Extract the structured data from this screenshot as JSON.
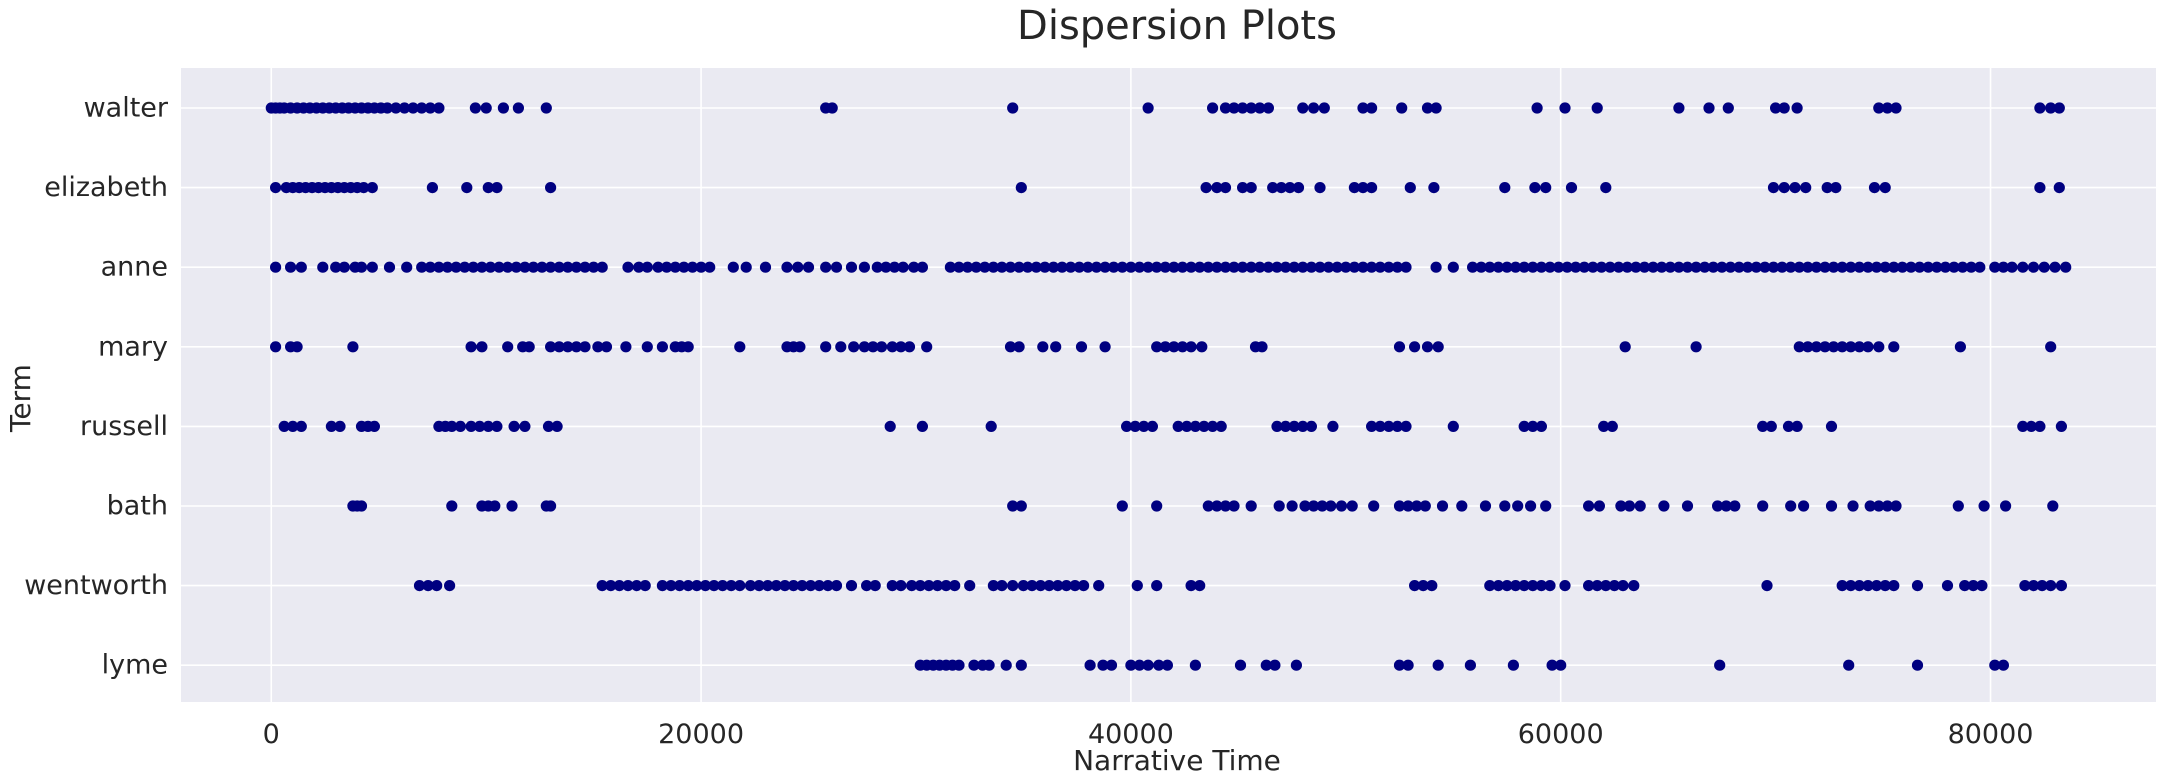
{
  "chart_data": {
    "type": "scatter",
    "title": "Dispersion Plots",
    "xlabel": "Narrative Time",
    "ylabel": "Term",
    "xlim": [
      -4200,
      87700
    ],
    "xticks": [
      0,
      20000,
      40000,
      60000,
      80000
    ],
    "xtick_labels": [
      "0",
      "20000",
      "40000",
      "60000",
      "80000"
    ],
    "grid": true,
    "colors": {
      "background": "#eaeaf2",
      "grid": "#ffffff",
      "marker": "#000080"
    },
    "categories": [
      "walter",
      "elizabeth",
      "anne",
      "mary",
      "russell",
      "bath",
      "wentworth",
      "lyme"
    ],
    "series": [
      {
        "values": [
          0,
          200,
          400,
          600,
          900,
          1200,
          1500,
          1800,
          2100,
          2400,
          2700,
          3000,
          3300,
          3600,
          3900,
          4200,
          4500,
          4800,
          5100,
          5400,
          5800,
          6200,
          6600,
          7000,
          7400,
          7800,
          9500,
          10000,
          10800,
          11500,
          12800,
          25800,
          26100,
          34500,
          40800,
          43800,
          44400,
          44800,
          45200,
          45600,
          46000,
          46400,
          48000,
          48500,
          49000,
          50800,
          51200,
          52600,
          53800,
          54200,
          58900,
          60200,
          61700,
          65500,
          66900,
          67800,
          70000,
          70400,
          71000,
          74800,
          75200,
          75600,
          82300,
          82800,
          83200
        ]
      },
      {
        "values": [
          200,
          700,
          1000,
          1300,
          1600,
          1900,
          2200,
          2500,
          2800,
          3100,
          3400,
          3700,
          4000,
          4300,
          4700,
          7500,
          9100,
          10100,
          10500,
          13000,
          34900,
          43500,
          44000,
          44400,
          45200,
          45600,
          46600,
          47000,
          47400,
          47800,
          48800,
          50400,
          50800,
          51200,
          53000,
          54100,
          57400,
          58800,
          59300,
          60500,
          62100,
          69900,
          70400,
          70900,
          71400,
          72400,
          72800,
          74600,
          75100,
          82300,
          83200
        ]
      },
      {
        "values": [
          200,
          900,
          1400,
          2400,
          3000,
          3400,
          3900,
          4200,
          4700,
          5500,
          6300,
          7000,
          7400,
          7800,
          8200,
          8600,
          9000,
          9400,
          9800,
          10200,
          10600,
          11000,
          11400,
          11800,
          12200,
          12600,
          13000,
          13400,
          13800,
          14200,
          14600,
          15000,
          15400,
          16600,
          17100,
          17500,
          18000,
          18400,
          18800,
          19200,
          19600,
          20000,
          20400,
          21500,
          22100,
          23000,
          24000,
          24500,
          25000,
          25800,
          26300,
          27000,
          27600,
          28200,
          28600,
          29000,
          29400,
          29900,
          30300,
          31600,
          32000,
          32400,
          32800,
          33200,
          33600,
          34000,
          34400,
          34800,
          35200,
          35600,
          36000,
          36400,
          36800,
          37200,
          37600,
          38000,
          38400,
          38800,
          39200,
          39600,
          40000,
          40400,
          40800,
          41200,
          41600,
          42000,
          42400,
          42800,
          43200,
          43600,
          44000,
          44400,
          44800,
          45200,
          45600,
          46000,
          46400,
          46800,
          47200,
          47600,
          48000,
          48400,
          48800,
          49200,
          49600,
          50000,
          50400,
          50800,
          51200,
          51600,
          52000,
          52400,
          52800,
          54200,
          55000,
          55900,
          56300,
          56700,
          57100,
          57500,
          57900,
          58300,
          58700,
          59100,
          59500,
          59900,
          60300,
          60700,
          61100,
          61500,
          61900,
          62300,
          62700,
          63100,
          63500,
          63900,
          64300,
          64700,
          65100,
          65500,
          65900,
          66300,
          66700,
          67100,
          67500,
          67900,
          68300,
          68700,
          69100,
          69500,
          69900,
          70300,
          70700,
          71100,
          71500,
          71900,
          72300,
          72700,
          73100,
          73500,
          73900,
          74300,
          74700,
          75100,
          75500,
          75900,
          76300,
          76700,
          77100,
          77500,
          77900,
          78300,
          78700,
          79100,
          79500,
          80200,
          80600,
          81000,
          81500,
          82000,
          82500,
          83000,
          83500
        ]
      },
      {
        "values": [
          200,
          900,
          1200,
          3800,
          9300,
          9800,
          11000,
          11700,
          12000,
          13000,
          13400,
          13800,
          14200,
          14600,
          15200,
          15600,
          16500,
          17500,
          18200,
          18800,
          19100,
          19400,
          21800,
          24000,
          24300,
          24600,
          25800,
          26500,
          27100,
          27600,
          28000,
          28400,
          28900,
          29300,
          29700,
          30500,
          34400,
          34800,
          35900,
          36500,
          37700,
          38800,
          41200,
          41600,
          42000,
          42400,
          42800,
          43300,
          45800,
          46100,
          52500,
          53200,
          53800,
          54300,
          63000,
          66300,
          71100,
          71500,
          71900,
          72300,
          72700,
          73100,
          73500,
          73900,
          74300,
          74800,
          75500,
          78600,
          82800
        ]
      },
      {
        "values": [
          600,
          1000,
          1400,
          2800,
          3200,
          4200,
          4500,
          4800,
          7800,
          8100,
          8400,
          8800,
          9300,
          9700,
          10100,
          10500,
          11300,
          11800,
          12900,
          13300,
          28800,
          30300,
          33500,
          39800,
          40200,
          40600,
          41000,
          42200,
          42600,
          43000,
          43400,
          43800,
          44200,
          46800,
          47200,
          47600,
          48000,
          48400,
          49400,
          51200,
          51600,
          52000,
          52400,
          52800,
          55000,
          58300,
          58700,
          59100,
          62000,
          62400,
          69400,
          69800,
          70600,
          71000,
          72600,
          81500,
          81900,
          82300,
          83300
        ]
      },
      {
        "values": [
          3800,
          4000,
          4200,
          8400,
          9800,
          10100,
          10400,
          11200,
          12800,
          13000,
          34500,
          34900,
          39600,
          41200,
          43600,
          44000,
          44400,
          44800,
          45600,
          46900,
          47500,
          48100,
          48500,
          48900,
          49300,
          49800,
          50300,
          51300,
          52500,
          52900,
          53300,
          53700,
          54500,
          55400,
          56500,
          57400,
          58000,
          58600,
          59300,
          61300,
          61800,
          62800,
          63200,
          63700,
          64800,
          65900,
          67300,
          67700,
          68100,
          69400,
          70700,
          71300,
          72600,
          73600,
          74400,
          74800,
          75200,
          75600,
          78500,
          79700,
          80700,
          82900
        ]
      },
      {
        "values": [
          6900,
          7300,
          7700,
          8300,
          15400,
          15800,
          16200,
          16600,
          17000,
          17400,
          18200,
          18600,
          19000,
          19400,
          19800,
          20200,
          20600,
          21000,
          21400,
          21800,
          22300,
          22700,
          23100,
          23500,
          23900,
          24300,
          24700,
          25100,
          25500,
          25900,
          26300,
          27000,
          27700,
          28100,
          28900,
          29300,
          29800,
          30200,
          30600,
          31000,
          31400,
          31800,
          32500,
          33600,
          34000,
          34500,
          35000,
          35400,
          35800,
          36200,
          36600,
          37000,
          37400,
          37800,
          38500,
          40300,
          41200,
          42800,
          43200,
          53200,
          53600,
          54000,
          56700,
          57100,
          57500,
          57900,
          58300,
          58700,
          59100,
          59500,
          60200,
          61300,
          61700,
          62100,
          62500,
          62900,
          63400,
          69600,
          73100,
          73500,
          73900,
          74300,
          74700,
          75100,
          75500,
          76600,
          78000,
          78800,
          79200,
          79600,
          81600,
          82000,
          82400,
          82800,
          83300
        ]
      },
      {
        "values": [
          30200,
          30500,
          30800,
          31100,
          31400,
          31700,
          32000,
          32700,
          33100,
          33400,
          34200,
          34900,
          38100,
          38700,
          39100,
          40000,
          40400,
          40800,
          41300,
          41700,
          43000,
          45100,
          46300,
          46700,
          47700,
          52500,
          52900,
          54300,
          55800,
          57800,
          59600,
          60000,
          67400,
          73400,
          76600,
          80200,
          80600
        ]
      }
    ]
  }
}
